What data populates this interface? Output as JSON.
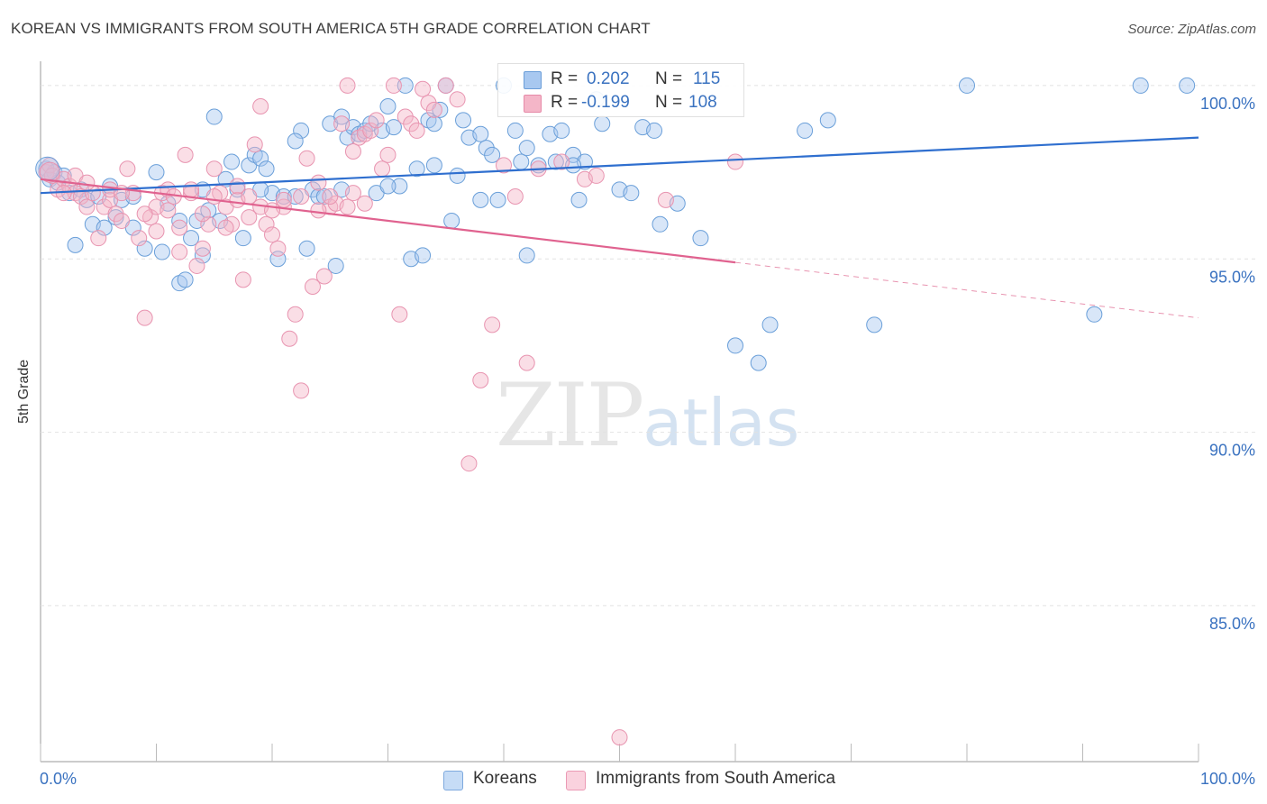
{
  "header": {
    "title": "KOREAN VS IMMIGRANTS FROM SOUTH AMERICA 5TH GRADE CORRELATION CHART",
    "source": "Source: ZipAtlas.com"
  },
  "watermark": {
    "zip": "ZIP",
    "atlas": "atlas"
  },
  "legend_top": {
    "rows": [
      {
        "r_label": "R =",
        "r_value": "0.202",
        "n_label": "N =",
        "n_value": "115",
        "color": "#a8c8f0"
      },
      {
        "r_label": "R =",
        "r_value": "-0.199",
        "n_label": "N =",
        "n_value": "108",
        "color": "#f4b6c8"
      }
    ]
  },
  "legend_bottom": {
    "items": [
      {
        "label": "Koreans",
        "color": "#a8c8f0"
      },
      {
        "label": "Immigrants from South America",
        "color": "#f4b6c8"
      }
    ]
  },
  "chart_data": {
    "type": "scatter",
    "title": "KOREAN VS IMMIGRANTS FROM SOUTH AMERICA 5TH GRADE CORRELATION CHART",
    "xlabel": "",
    "ylabel": "5th Grade",
    "xlim": [
      0,
      100
    ],
    "ylim": [
      80.5,
      100.7
    ],
    "x_tick_labels": [
      "0.0%",
      "100.0%"
    ],
    "y_ticks": [
      100,
      95,
      90,
      85
    ],
    "y_tick_labels": [
      "100.0%",
      "95.0%",
      "90.0%",
      "85.0%"
    ],
    "grid": true,
    "colors": {
      "koreans": "#3a7bd5",
      "koreans_fill": "#a8c8f0",
      "immigrants": "#e8729a",
      "immigrants_fill": "#f4b6c8",
      "axis_label": "#3a72c0"
    },
    "series": [
      {
        "name": "Koreans",
        "trend": {
          "x0": 0,
          "y0": 96.9,
          "x1": 100,
          "y1": 98.5
        },
        "points": [
          [
            0.5,
            97.6
          ],
          [
            0.8,
            97.3
          ],
          [
            1.2,
            97.5
          ],
          [
            1.5,
            97.2
          ],
          [
            2.0,
            97.4
          ],
          [
            2.5,
            96.9
          ],
          [
            3.0,
            95.4
          ],
          [
            3.5,
            97.0
          ],
          [
            4.0,
            96.7
          ],
          [
            4.5,
            96.0
          ],
          [
            5.0,
            96.8
          ],
          [
            5.5,
            95.9
          ],
          [
            6.0,
            97.1
          ],
          [
            7.0,
            96.7
          ],
          [
            8.0,
            96.8
          ],
          [
            9.0,
            95.3
          ],
          [
            10.0,
            97.5
          ],
          [
            10.5,
            95.2
          ],
          [
            11.0,
            96.6
          ],
          [
            12.0,
            94.3
          ],
          [
            12.5,
            94.4
          ],
          [
            13.0,
            95.6
          ],
          [
            13.5,
            96.1
          ],
          [
            14.0,
            95.1
          ],
          [
            14.5,
            96.4
          ],
          [
            15.0,
            99.1
          ],
          [
            15.5,
            96.1
          ],
          [
            16.0,
            97.3
          ],
          [
            16.5,
            97.8
          ],
          [
            17.0,
            97.0
          ],
          [
            17.5,
            95.6
          ],
          [
            18.0,
            97.7
          ],
          [
            18.5,
            98.0
          ],
          [
            19.0,
            97.9
          ],
          [
            19.5,
            97.6
          ],
          [
            20.0,
            96.9
          ],
          [
            20.5,
            95.0
          ],
          [
            21.0,
            96.8
          ],
          [
            22.0,
            96.8
          ],
          [
            22.5,
            98.7
          ],
          [
            23.0,
            95.3
          ],
          [
            23.5,
            97.0
          ],
          [
            24.0,
            96.8
          ],
          [
            25.0,
            98.9
          ],
          [
            25.5,
            94.8
          ],
          [
            26.0,
            99.1
          ],
          [
            26.5,
            98.5
          ],
          [
            27.0,
            98.8
          ],
          [
            27.5,
            98.6
          ],
          [
            28.0,
            98.7
          ],
          [
            28.5,
            98.9
          ],
          [
            29.0,
            96.9
          ],
          [
            29.5,
            98.7
          ],
          [
            30.0,
            99.4
          ],
          [
            30.5,
            98.8
          ],
          [
            31.0,
            97.1
          ],
          [
            31.5,
            100.0
          ],
          [
            32.0,
            95.0
          ],
          [
            32.5,
            97.6
          ],
          [
            33.0,
            95.1
          ],
          [
            33.5,
            99.0
          ],
          [
            34.0,
            98.9
          ],
          [
            34.5,
            99.3
          ],
          [
            35.0,
            100.0
          ],
          [
            35.5,
            96.1
          ],
          [
            36.0,
            97.4
          ],
          [
            36.5,
            99.0
          ],
          [
            37.0,
            98.5
          ],
          [
            38.0,
            98.6
          ],
          [
            38.5,
            98.2
          ],
          [
            39.0,
            98.0
          ],
          [
            39.5,
            96.7
          ],
          [
            40.0,
            100.0
          ],
          [
            41.0,
            98.7
          ],
          [
            41.5,
            97.8
          ],
          [
            42.0,
            98.2
          ],
          [
            43.0,
            97.7
          ],
          [
            44.0,
            98.6
          ],
          [
            44.5,
            97.8
          ],
          [
            45.0,
            98.7
          ],
          [
            46.0,
            98.0
          ],
          [
            46.5,
            96.7
          ],
          [
            47.0,
            97.8
          ],
          [
            48.0,
            99.6
          ],
          [
            48.5,
            98.9
          ],
          [
            50.0,
            97.0
          ],
          [
            51.0,
            96.9
          ],
          [
            52.0,
            98.8
          ],
          [
            53.0,
            98.7
          ],
          [
            53.5,
            96.0
          ],
          [
            55.0,
            96.6
          ],
          [
            57.0,
            95.6
          ],
          [
            60.0,
            92.5
          ],
          [
            62.0,
            92.0
          ],
          [
            63.0,
            93.1
          ],
          [
            66.0,
            98.7
          ],
          [
            68.0,
            99.0
          ],
          [
            72.0,
            93.1
          ],
          [
            80.0,
            100.0
          ],
          [
            91.0,
            93.4
          ],
          [
            95.0,
            100.0
          ],
          [
            99.0,
            100.0
          ],
          [
            38.0,
            96.7
          ],
          [
            42.0,
            95.1
          ],
          [
            22.0,
            98.4
          ],
          [
            26.0,
            97.0
          ],
          [
            30.0,
            97.1
          ],
          [
            14.0,
            97.0
          ],
          [
            19.0,
            97.0
          ],
          [
            24.5,
            96.8
          ],
          [
            12.0,
            96.1
          ],
          [
            8.0,
            95.9
          ],
          [
            6.5,
            96.2
          ],
          [
            34.0,
            97.7
          ],
          [
            46.0,
            97.7
          ]
        ]
      },
      {
        "name": "Immigrants from South America",
        "trend": {
          "x0": 0,
          "y0": 97.3,
          "x1": 60,
          "y1": 94.9,
          "dash_x1": 100,
          "dash_y1": 93.3
        },
        "points": [
          [
            0.5,
            97.5
          ],
          [
            0.8,
            97.7
          ],
          [
            1.0,
            97.4
          ],
          [
            1.5,
            97.0
          ],
          [
            2.0,
            97.3
          ],
          [
            2.5,
            97.1
          ],
          [
            3.0,
            96.9
          ],
          [
            3.5,
            96.8
          ],
          [
            4.0,
            96.5
          ],
          [
            4.5,
            96.9
          ],
          [
            5.0,
            95.6
          ],
          [
            5.5,
            96.5
          ],
          [
            6.0,
            96.7
          ],
          [
            6.5,
            96.3
          ],
          [
            7.0,
            96.1
          ],
          [
            7.5,
            97.6
          ],
          [
            8.0,
            96.9
          ],
          [
            8.5,
            95.6
          ],
          [
            9.0,
            93.3
          ],
          [
            9.5,
            96.2
          ],
          [
            10.0,
            96.5
          ],
          [
            10.5,
            96.9
          ],
          [
            11.0,
            97.0
          ],
          [
            11.5,
            96.8
          ],
          [
            12.0,
            95.9
          ],
          [
            12.5,
            98.0
          ],
          [
            13.0,
            96.9
          ],
          [
            13.5,
            94.8
          ],
          [
            14.0,
            95.3
          ],
          [
            14.5,
            96.0
          ],
          [
            15.0,
            97.6
          ],
          [
            15.5,
            96.9
          ],
          [
            16.0,
            96.5
          ],
          [
            16.5,
            96.0
          ],
          [
            17.0,
            96.7
          ],
          [
            17.5,
            94.4
          ],
          [
            18.0,
            96.8
          ],
          [
            18.5,
            98.3
          ],
          [
            19.0,
            99.4
          ],
          [
            19.5,
            96.0
          ],
          [
            20.0,
            95.7
          ],
          [
            20.5,
            95.3
          ],
          [
            21.0,
            96.5
          ],
          [
            21.5,
            92.7
          ],
          [
            22.0,
            93.4
          ],
          [
            22.5,
            91.2
          ],
          [
            23.0,
            97.9
          ],
          [
            23.5,
            94.2
          ],
          [
            24.0,
            97.2
          ],
          [
            24.5,
            94.5
          ],
          [
            25.0,
            96.5
          ],
          [
            25.5,
            96.6
          ],
          [
            26.0,
            98.9
          ],
          [
            26.5,
            100.0
          ],
          [
            27.0,
            98.1
          ],
          [
            27.5,
            98.5
          ],
          [
            28.0,
            98.6
          ],
          [
            28.5,
            98.7
          ],
          [
            29.0,
            99.0
          ],
          [
            29.5,
            97.6
          ],
          [
            30.0,
            98.0
          ],
          [
            30.5,
            100.0
          ],
          [
            31.0,
            93.4
          ],
          [
            31.5,
            99.1
          ],
          [
            32.0,
            98.9
          ],
          [
            32.5,
            98.7
          ],
          [
            33.0,
            99.9
          ],
          [
            33.5,
            99.5
          ],
          [
            34.0,
            99.3
          ],
          [
            35.0,
            100.0
          ],
          [
            36.0,
            99.6
          ],
          [
            37.0,
            89.1
          ],
          [
            38.0,
            91.5
          ],
          [
            39.0,
            93.1
          ],
          [
            40.0,
            97.7
          ],
          [
            41.0,
            96.8
          ],
          [
            42.0,
            92.0
          ],
          [
            43.0,
            97.6
          ],
          [
            45.0,
            97.8
          ],
          [
            47.0,
            97.3
          ],
          [
            48.0,
            97.4
          ],
          [
            50.0,
            81.2
          ],
          [
            60.0,
            97.8
          ],
          [
            54.0,
            96.7
          ],
          [
            3.0,
            97.4
          ],
          [
            6.0,
            97.0
          ],
          [
            9.0,
            96.3
          ],
          [
            11.0,
            96.4
          ],
          [
            13.0,
            97.0
          ],
          [
            15.0,
            96.8
          ],
          [
            17.0,
            97.1
          ],
          [
            19.0,
            96.5
          ],
          [
            21.0,
            96.7
          ],
          [
            22.5,
            96.8
          ],
          [
            24.0,
            96.4
          ],
          [
            26.5,
            96.5
          ],
          [
            28.0,
            96.6
          ],
          [
            2.0,
            96.9
          ],
          [
            4.0,
            97.2
          ],
          [
            7.0,
            96.9
          ],
          [
            10.0,
            95.8
          ],
          [
            12.0,
            95.2
          ],
          [
            14.0,
            96.3
          ],
          [
            16.0,
            95.9
          ],
          [
            18.0,
            96.2
          ],
          [
            20.0,
            96.4
          ],
          [
            25.0,
            96.8
          ],
          [
            27.0,
            96.9
          ]
        ]
      }
    ]
  }
}
